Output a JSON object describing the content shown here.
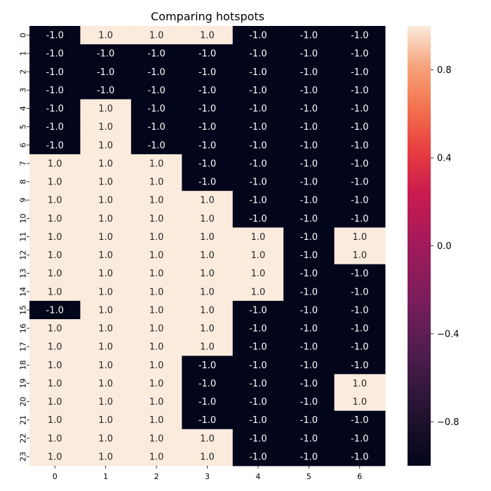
{
  "chart_data": {
    "type": "heatmap",
    "title": "Comparing hotspots",
    "x_ticks": [
      "0",
      "1",
      "2",
      "3",
      "4",
      "5",
      "6"
    ],
    "y_ticks": [
      "0",
      "1",
      "2",
      "3",
      "4",
      "5",
      "6",
      "7",
      "8",
      "9",
      "10",
      "11",
      "12",
      "13",
      "14",
      "15",
      "16",
      "17",
      "18",
      "19",
      "20",
      "21",
      "22",
      "23"
    ],
    "values": [
      [
        -1.0,
        1.0,
        1.0,
        1.0,
        -1.0,
        -1.0,
        -1.0
      ],
      [
        -1.0,
        -1.0,
        -1.0,
        -1.0,
        -1.0,
        -1.0,
        -1.0
      ],
      [
        -1.0,
        -1.0,
        -1.0,
        -1.0,
        -1.0,
        -1.0,
        -1.0
      ],
      [
        -1.0,
        -1.0,
        -1.0,
        -1.0,
        -1.0,
        -1.0,
        -1.0
      ],
      [
        -1.0,
        1.0,
        -1.0,
        -1.0,
        -1.0,
        -1.0,
        -1.0
      ],
      [
        -1.0,
        1.0,
        -1.0,
        -1.0,
        -1.0,
        -1.0,
        -1.0
      ],
      [
        -1.0,
        1.0,
        -1.0,
        -1.0,
        -1.0,
        -1.0,
        -1.0
      ],
      [
        1.0,
        1.0,
        1.0,
        -1.0,
        -1.0,
        -1.0,
        -1.0
      ],
      [
        1.0,
        1.0,
        1.0,
        -1.0,
        -1.0,
        -1.0,
        -1.0
      ],
      [
        1.0,
        1.0,
        1.0,
        1.0,
        -1.0,
        -1.0,
        -1.0
      ],
      [
        1.0,
        1.0,
        1.0,
        1.0,
        -1.0,
        -1.0,
        -1.0
      ],
      [
        1.0,
        1.0,
        1.0,
        1.0,
        1.0,
        -1.0,
        1.0
      ],
      [
        1.0,
        1.0,
        1.0,
        1.0,
        1.0,
        -1.0,
        1.0
      ],
      [
        1.0,
        1.0,
        1.0,
        1.0,
        1.0,
        -1.0,
        -1.0
      ],
      [
        1.0,
        1.0,
        1.0,
        1.0,
        1.0,
        -1.0,
        -1.0
      ],
      [
        -1.0,
        1.0,
        1.0,
        1.0,
        -1.0,
        -1.0,
        -1.0
      ],
      [
        1.0,
        1.0,
        1.0,
        1.0,
        -1.0,
        -1.0,
        -1.0
      ],
      [
        1.0,
        1.0,
        1.0,
        1.0,
        -1.0,
        -1.0,
        -1.0
      ],
      [
        1.0,
        1.0,
        1.0,
        -1.0,
        -1.0,
        -1.0,
        -1.0
      ],
      [
        1.0,
        1.0,
        1.0,
        -1.0,
        -1.0,
        -1.0,
        1.0
      ],
      [
        1.0,
        1.0,
        1.0,
        -1.0,
        -1.0,
        -1.0,
        1.0
      ],
      [
        1.0,
        1.0,
        1.0,
        -1.0,
        -1.0,
        -1.0,
        -1.0
      ],
      [
        1.0,
        1.0,
        1.0,
        1.0,
        -1.0,
        -1.0,
        -1.0
      ],
      [
        1.0,
        1.0,
        1.0,
        1.0,
        -1.0,
        -1.0,
        -1.0
      ]
    ],
    "value_range": [
      -1.0,
      1.0
    ],
    "annotated": true,
    "annotation_format": "0.0",
    "colorbar": {
      "ticks": [
        "0.8",
        "0.4",
        "0.0",
        "−0.4",
        "−0.8"
      ],
      "tick_values": [
        0.8,
        0.4,
        0.0,
        -0.4,
        -0.8
      ],
      "placement": "right"
    },
    "colors": {
      "low": "#03051a",
      "high": "#faebdd",
      "annotation_on_dark": "#ffffff",
      "annotation_on_light": "#262626"
    },
    "colormap": "rocket"
  }
}
